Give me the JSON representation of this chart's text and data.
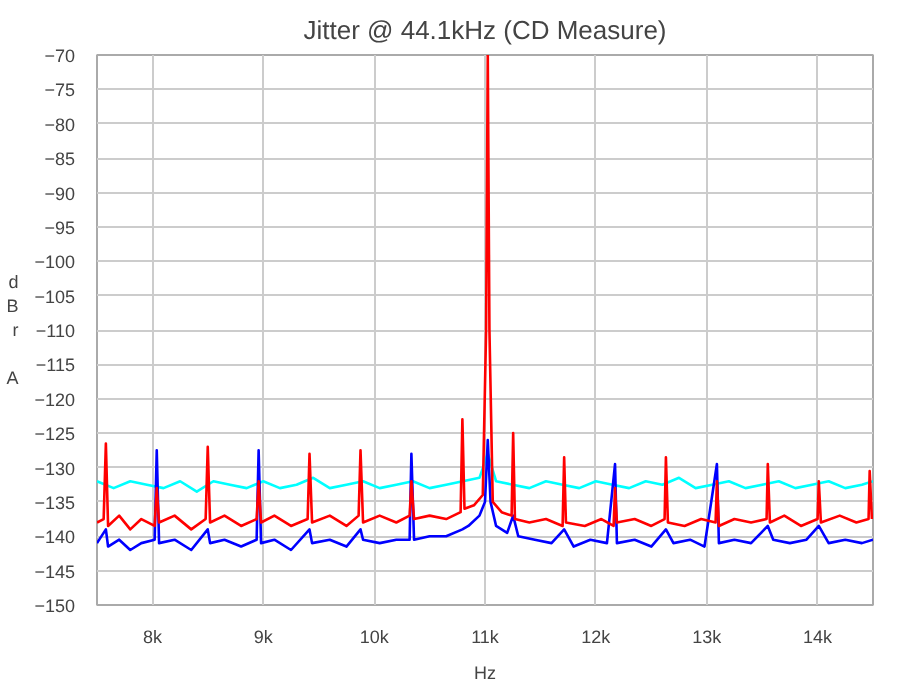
{
  "chart_data": {
    "type": "line",
    "title": "Jitter @ 44.1kHz (CD Measure)",
    "xlabel": "Hz",
    "ylabel": "dBr A",
    "xlim": [
      7500,
      14500
    ],
    "ylim": [
      -150,
      -70
    ],
    "xticks": [
      {
        "value": 8000,
        "label": "8k"
      },
      {
        "value": 9000,
        "label": "9k"
      },
      {
        "value": 10000,
        "label": "10k"
      },
      {
        "value": 11000,
        "label": "11k"
      },
      {
        "value": 12000,
        "label": "12k"
      },
      {
        "value": 13000,
        "label": "13k"
      },
      {
        "value": 14000,
        "label": "14k"
      }
    ],
    "yticks": [
      -150,
      -145,
      -140,
      -135,
      -130,
      -125,
      -120,
      -115,
      -110,
      -105,
      -100,
      -95,
      -90,
      -85,
      -80,
      -75,
      -70
    ],
    "grid": true,
    "line_style": "solid",
    "series": [
      {
        "color": "#00ffff",
        "x": [
          7500,
          7650,
          7800,
          7950,
          8100,
          8250,
          8400,
          8550,
          8700,
          8850,
          9000,
          9150,
          9300,
          9450,
          9600,
          9750,
          9900,
          10050,
          10200,
          10350,
          10500,
          10650,
          10800,
          10950,
          11025,
          11100,
          11250,
          11400,
          11550,
          11700,
          11850,
          12000,
          12150,
          12300,
          12450,
          12600,
          12750,
          12900,
          13050,
          13200,
          13350,
          13500,
          13650,
          13800,
          13950,
          14100,
          14250,
          14400,
          14500
        ],
        "values": [
          -132,
          -133,
          -132,
          -132.5,
          -133,
          -132,
          -133.5,
          -132,
          -132.5,
          -133,
          -132,
          -133,
          -132.5,
          -131.5,
          -133,
          -132.5,
          -132,
          -133,
          -132.5,
          -132,
          -133,
          -132.5,
          -132,
          -131.5,
          -128,
          -132,
          -132.5,
          -133,
          -132,
          -132.5,
          -133,
          -132,
          -132.5,
          -133,
          -132,
          -132.5,
          -131.5,
          -133,
          -132.5,
          -132,
          -133,
          -132.5,
          -132,
          -133,
          -132.5,
          -132,
          -133,
          -132.5,
          -132
        ]
      },
      {
        "color": "#0000ff",
        "x": [
          7500,
          7580,
          7600,
          7700,
          7800,
          7900,
          8020,
          8039,
          8060,
          8200,
          8350,
          8499,
          8520,
          8650,
          8800,
          8940,
          8958,
          8980,
          9100,
          9250,
          9417,
          9440,
          9600,
          9750,
          9877,
          9900,
          10050,
          10200,
          10320,
          10336,
          10360,
          10500,
          10650,
          10796,
          10850,
          10950,
          11000,
          11025,
          11050,
          11100,
          11200,
          11254,
          11300,
          11450,
          11600,
          11714,
          11800,
          11950,
          12100,
          12173,
          12190,
          12350,
          12500,
          12632,
          12700,
          12850,
          12980,
          13092,
          13110,
          13250,
          13400,
          13551,
          13600,
          13750,
          13900,
          14011,
          14100,
          14250,
          14400,
          14500
        ],
        "values": [
          -141,
          -139,
          -141.5,
          -140.5,
          -142,
          -141,
          -140.5,
          -127.5,
          -141,
          -140.5,
          -142,
          -139,
          -141,
          -140.5,
          -141.5,
          -140.5,
          -127.5,
          -141,
          -140.5,
          -142,
          -139,
          -141,
          -140.5,
          -141.5,
          -139,
          -140.5,
          -141,
          -140.5,
          -140.5,
          -128,
          -140.5,
          -140,
          -140,
          -139,
          -138.5,
          -137,
          -135,
          -126,
          -135,
          -138.5,
          -139.5,
          -137,
          -140,
          -140.5,
          -141,
          -139,
          -141.5,
          -140.5,
          -141,
          -129.5,
          -141,
          -140.5,
          -141.5,
          -139,
          -141,
          -140.5,
          -141.5,
          -129.5,
          -141,
          -140.5,
          -141,
          -138.5,
          -140.5,
          -141,
          -140.5,
          -138.5,
          -141,
          -140.5,
          -141,
          -140.5
        ]
      },
      {
        "color": "#ff0000",
        "x": [
          7500,
          7560,
          7580,
          7600,
          7700,
          7800,
          7900,
          8020,
          8039,
          8060,
          8200,
          8350,
          8480,
          8499,
          8520,
          8650,
          8800,
          8940,
          8958,
          8980,
          9100,
          9250,
          9400,
          9417,
          9440,
          9600,
          9750,
          9860,
          9877,
          9900,
          10050,
          10200,
          10320,
          10336,
          10360,
          10500,
          10650,
          10780,
          10796,
          10815,
          10900,
          10980,
          11010,
          11025,
          11040,
          11070,
          11150,
          11240,
          11254,
          11270,
          11400,
          11550,
          11700,
          11714,
          11730,
          11900,
          12050,
          12160,
          12173,
          12190,
          12350,
          12500,
          12620,
          12632,
          12650,
          12800,
          12950,
          13080,
          13092,
          13110,
          13250,
          13400,
          13540,
          13551,
          13570,
          13700,
          13850,
          14000,
          14011,
          14030,
          14200,
          14350,
          14460,
          14470,
          14490
        ],
        "values": [
          -138,
          -137.5,
          -126.5,
          -138.5,
          -137,
          -139,
          -137.5,
          -138.5,
          -133,
          -138,
          -137,
          -139,
          -137.5,
          -127,
          -138,
          -137,
          -138.5,
          -137.5,
          -132,
          -138,
          -137,
          -138.5,
          -137.5,
          -128,
          -138,
          -137,
          -138.5,
          -137,
          -127.5,
          -138,
          -137,
          -138,
          -137,
          -132,
          -137.5,
          -137,
          -137.5,
          -136.5,
          -123,
          -136,
          -135.5,
          -134,
          -110,
          -70,
          -110,
          -135,
          -136.5,
          -137,
          -125,
          -137.5,
          -138,
          -137.5,
          -138.5,
          -128.5,
          -138,
          -138.5,
          -137.5,
          -138.5,
          -133,
          -138,
          -137.5,
          -138.5,
          -137.5,
          -128.5,
          -138,
          -138.5,
          -137.5,
          -138,
          -132,
          -138.5,
          -137.5,
          -138,
          -137.5,
          -129.5,
          -138,
          -137,
          -138.5,
          -137.5,
          -132,
          -138,
          -137,
          -138,
          -137.5,
          -130.5,
          -137.5
        ]
      }
    ]
  }
}
